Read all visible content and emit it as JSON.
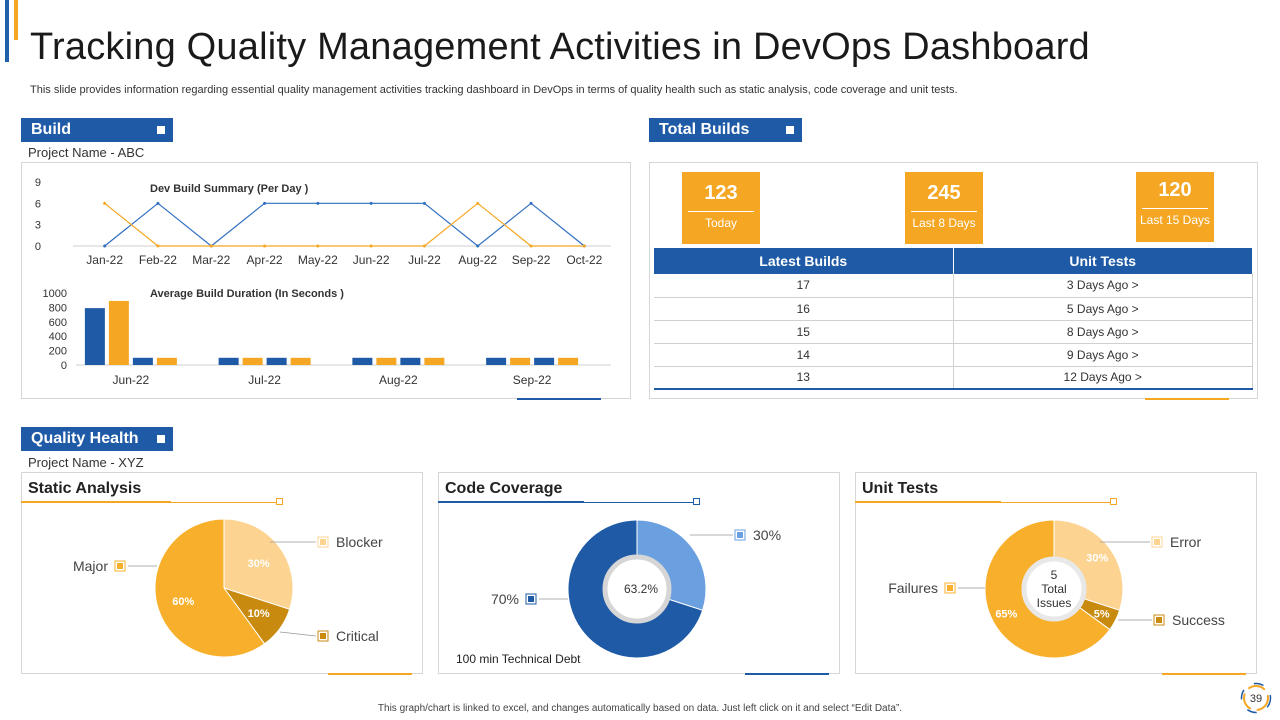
{
  "title": "Tracking Quality Management  Activities in DevOps Dashboard",
  "subtitle": "This slide provides information regarding essential quality management activities tracking dashboard in DevOps in terms of quality health such as static analysis, code coverage and unit tests.",
  "build": {
    "label": "Build",
    "project": "Project Name - ABC"
  },
  "total_builds": {
    "label": "Total Builds",
    "kpis": [
      {
        "value": "123",
        "label": "Today"
      },
      {
        "value": "245",
        "label": "Last 8 Days"
      },
      {
        "value": "120",
        "label": "Last 15 Days"
      }
    ],
    "headers": [
      "Latest Builds",
      "Unit Tests"
    ],
    "rows": [
      [
        "17",
        "3 Days Ago >"
      ],
      [
        "16",
        "5 Days Ago >"
      ],
      [
        "15",
        "8 Days Ago >"
      ],
      [
        "14",
        "9 Days Ago >"
      ],
      [
        "13",
        "12 Days Ago >"
      ]
    ]
  },
  "quality_health": {
    "label": "Quality Health",
    "project": "Project Name - XYZ",
    "static_title": "Static Analysis",
    "coverage_title": "Code Coverage",
    "unit_title": "Unit Tests",
    "coverage_center": "63.2%",
    "coverage_note": "100 min Technical Debt",
    "unit_center": [
      "5",
      "Total",
      "Issues"
    ]
  },
  "colors": {
    "blue": "#1f5aa6",
    "orange": "#f5a623",
    "light_orange": "#fcd390",
    "dark_orange": "#c98a10",
    "light_blue": "#6a9fe0"
  },
  "footer": "This graph/chart is linked to excel, and changes automatically based on data. Just left click on it and select “Edit Data”.",
  "page_number": "39",
  "chart_data": [
    {
      "type": "line",
      "title": "Dev Build  Summary (Per Day )",
      "categories": [
        "Jan-22",
        "Feb-22",
        "Mar-22",
        "Apr-22",
        "May-22",
        "Jun-22",
        "Jul-22",
        "Aug-22",
        "Sep-22",
        "Oct-22"
      ],
      "ylim": [
        0,
        9
      ],
      "yticks": [
        0,
        3,
        6,
        9
      ],
      "series": [
        {
          "color": "#2e6ec0",
          "values": [
            0,
            6,
            0,
            6,
            6,
            6,
            6,
            0,
            6,
            0
          ]
        },
        {
          "color": "#f5a623",
          "values": [
            6,
            0,
            0,
            0,
            0,
            0,
            0,
            6,
            0,
            0
          ]
        }
      ]
    },
    {
      "type": "bar",
      "title": "Average Build Duration  (In Seconds )",
      "categories": [
        "Jun-22",
        "Jul-22",
        "Aug-22",
        "Sep-22"
      ],
      "ylim": [
        0,
        1000
      ],
      "yticks": [
        0,
        200,
        400,
        600,
        800,
        1000
      ],
      "bars_per_category": [
        [
          {
            "color": "#1f5aa6",
            "value": 790
          },
          {
            "color": "#f5a623",
            "value": 890
          },
          {
            "color": "#1f5aa6",
            "value": 100
          },
          {
            "color": "#f5a623",
            "value": 100
          }
        ],
        [
          {
            "color": "#1f5aa6",
            "value": 100
          },
          {
            "color": "#f5a623",
            "value": 100
          },
          {
            "color": "#1f5aa6",
            "value": 100
          },
          {
            "color": "#f5a623",
            "value": 100
          }
        ],
        [
          {
            "color": "#1f5aa6",
            "value": 100
          },
          {
            "color": "#f5a623",
            "value": 100
          },
          {
            "color": "#1f5aa6",
            "value": 100
          },
          {
            "color": "#f5a623",
            "value": 100
          }
        ],
        [
          {
            "color": "#1f5aa6",
            "value": 100
          },
          {
            "color": "#f5a623",
            "value": 100
          },
          {
            "color": "#1f5aa6",
            "value": 100
          },
          {
            "color": "#f5a623",
            "value": 100
          }
        ]
      ]
    },
    {
      "type": "pie",
      "slices": [
        {
          "label": "Blocker",
          "value": 30,
          "text": "30%",
          "color": "#fcd390"
        },
        {
          "label": "Critical",
          "value": 10,
          "text": "10%",
          "color": "#c98a10"
        },
        {
          "label": "Major",
          "value": 60,
          "text": "60%",
          "color": "#f8b02c"
        }
      ]
    },
    {
      "type": "pie",
      "slices": [
        {
          "label": "30%",
          "value": 30,
          "color": "#6a9fe0"
        },
        {
          "label": "70%",
          "value": 70,
          "color": "#1f5aa6"
        }
      ]
    },
    {
      "type": "pie",
      "slices": [
        {
          "label": "Error",
          "value": 30,
          "text": "30%",
          "color": "#fcd390"
        },
        {
          "label": "Success",
          "value": 5,
          "text": "5%",
          "color": "#c98a10"
        },
        {
          "label": "Failures",
          "value": 65,
          "text": "65%",
          "color": "#f8b02c"
        }
      ]
    }
  ]
}
